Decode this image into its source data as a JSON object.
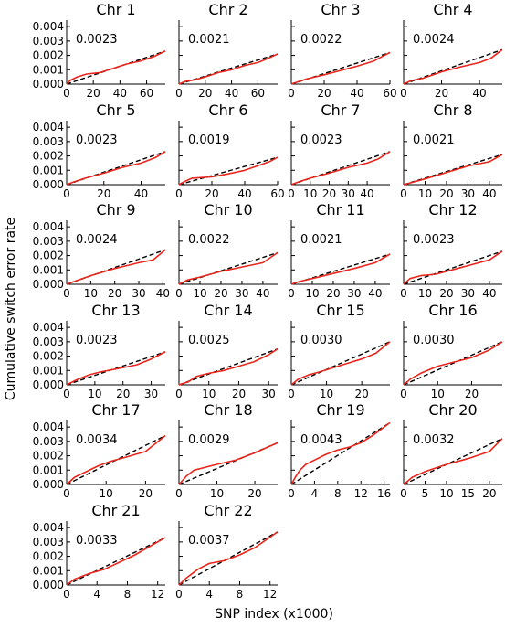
{
  "figure": {
    "xlabel": "SNP index (x1000)",
    "ylabel": "Cumulative switch error rate",
    "colors": {
      "observed": "#e8261c",
      "expected": "#000000"
    }
  },
  "chart_data": {
    "type": "line",
    "xlabel": "SNP index (x1000)",
    "ylabel": "Cumulative switch error rate",
    "ylim": [
      0,
      0.0042
    ],
    "yticks": [
      "0.000",
      "0.001",
      "0.002",
      "0.003",
      "0.004"
    ],
    "grid": false,
    "series_styles": {
      "observed": "solid red",
      "expected": "dashed black"
    },
    "panels": [
      {
        "title": "Chr 1",
        "value": "0.0023",
        "rate": 0.0023,
        "xmax": 74,
        "xlim": [
          0,
          74
        ],
        "xticks": [
          0,
          20,
          40,
          60
        ],
        "observed": [
          [
            0,
            0
          ],
          [
            3,
            0.00028
          ],
          [
            8,
            0.0005
          ],
          [
            15,
            0.0007
          ],
          [
            25,
            0.0008
          ],
          [
            35,
            0.0011
          ],
          [
            45,
            0.0014
          ],
          [
            55,
            0.0016
          ],
          [
            65,
            0.0019
          ],
          [
            74,
            0.0023
          ]
        ]
      },
      {
        "title": "Chr 2",
        "value": "0.0021",
        "rate": 0.0021,
        "xmax": 75,
        "xlim": [
          0,
          75
        ],
        "xticks": [
          0,
          20,
          40,
          60
        ],
        "observed": [
          [
            0,
            0
          ],
          [
            5,
            0.0002
          ],
          [
            12,
            0.0003
          ],
          [
            20,
            0.0005
          ],
          [
            30,
            0.0008
          ],
          [
            40,
            0.001
          ],
          [
            50,
            0.0013
          ],
          [
            60,
            0.0015
          ],
          [
            68,
            0.0018
          ],
          [
            75,
            0.0021
          ]
        ]
      },
      {
        "title": "Chr 3",
        "value": "0.0022",
        "rate": 0.0022,
        "xmax": 60,
        "xlim": [
          0,
          60
        ],
        "xticks": [
          0,
          20,
          40,
          60
        ],
        "observed": [
          [
            0,
            0
          ],
          [
            5,
            0.0002
          ],
          [
            10,
            0.00038
          ],
          [
            20,
            0.00065
          ],
          [
            30,
            0.00095
          ],
          [
            40,
            0.00125
          ],
          [
            50,
            0.0016
          ],
          [
            55,
            0.0019
          ],
          [
            60,
            0.0022
          ]
        ]
      },
      {
        "title": "Chr 4",
        "value": "0.0024",
        "rate": 0.0024,
        "xmax": 52,
        "xlim": [
          0,
          52
        ],
        "xticks": [
          0,
          20,
          40
        ],
        "observed": [
          [
            0,
            0
          ],
          [
            4,
            0.00025
          ],
          [
            10,
            0.0004
          ],
          [
            20,
            0.00085
          ],
          [
            30,
            0.0012
          ],
          [
            40,
            0.0015
          ],
          [
            46,
            0.0018
          ],
          [
            52,
            0.0024
          ]
        ]
      },
      {
        "title": "Chr 5",
        "value": "0.0023",
        "rate": 0.0023,
        "xmax": 53,
        "xlim": [
          0,
          53
        ],
        "xticks": [
          0,
          20,
          40
        ],
        "observed": [
          [
            0,
            0
          ],
          [
            4,
            0.0002
          ],
          [
            10,
            0.00045
          ],
          [
            20,
            0.0008
          ],
          [
            30,
            0.0012
          ],
          [
            40,
            0.0015
          ],
          [
            48,
            0.0019
          ],
          [
            53,
            0.0023
          ]
        ]
      },
      {
        "title": "Chr 6",
        "value": "0.0019",
        "rate": 0.0019,
        "xmax": 60,
        "xlim": [
          0,
          60
        ],
        "xticks": [
          0,
          20,
          40,
          60
        ],
        "observed": [
          [
            0,
            0
          ],
          [
            3,
            0.0002
          ],
          [
            8,
            0.00045
          ],
          [
            15,
            0.0005
          ],
          [
            20,
            0.00055
          ],
          [
            30,
            0.00075
          ],
          [
            40,
            0.001
          ],
          [
            50,
            0.0014
          ],
          [
            55,
            0.0016
          ],
          [
            60,
            0.0019
          ]
        ]
      },
      {
        "title": "Chr 7",
        "value": "0.0023",
        "rate": 0.0023,
        "xmax": 52,
        "xlim": [
          0,
          52
        ],
        "xticks": [
          0,
          10,
          20,
          30,
          40
        ],
        "observed": [
          [
            0,
            0
          ],
          [
            4,
            0.0002
          ],
          [
            10,
            0.00045
          ],
          [
            20,
            0.0008
          ],
          [
            30,
            0.0012
          ],
          [
            40,
            0.0015
          ],
          [
            46,
            0.0018
          ],
          [
            52,
            0.0023
          ]
        ]
      },
      {
        "title": "Chr 8",
        "value": "0.0021",
        "rate": 0.0021,
        "xmax": 46,
        "xlim": [
          0,
          46
        ],
        "xticks": [
          0,
          10,
          20,
          30,
          40
        ],
        "observed": [
          [
            0,
            0
          ],
          [
            5,
            0.0002
          ],
          [
            10,
            0.0004
          ],
          [
            20,
            0.00085
          ],
          [
            30,
            0.0013
          ],
          [
            40,
            0.0016
          ],
          [
            46,
            0.0021
          ]
        ]
      },
      {
        "title": "Chr 9",
        "value": "0.0024",
        "rate": 0.0024,
        "xmax": 41,
        "xlim": [
          0,
          41
        ],
        "xticks": [
          0,
          10,
          20,
          30,
          40
        ],
        "observed": [
          [
            0,
            0
          ],
          [
            4,
            0.00025
          ],
          [
            10,
            0.0006
          ],
          [
            20,
            0.0011
          ],
          [
            30,
            0.0015
          ],
          [
            36,
            0.0017
          ],
          [
            41,
            0.0024
          ]
        ]
      },
      {
        "title": "Chr 10",
        "value": "0.0022",
        "rate": 0.0022,
        "xmax": 47,
        "xlim": [
          0,
          47
        ],
        "xticks": [
          0,
          10,
          20,
          30,
          40
        ],
        "observed": [
          [
            0,
            0
          ],
          [
            4,
            0.0003
          ],
          [
            10,
            0.0005
          ],
          [
            20,
            0.0009
          ],
          [
            30,
            0.0012
          ],
          [
            40,
            0.0015
          ],
          [
            47,
            0.0022
          ]
        ]
      },
      {
        "title": "Chr 11",
        "value": "0.0021",
        "rate": 0.0021,
        "xmax": 47,
        "xlim": [
          0,
          47
        ],
        "xticks": [
          0,
          10,
          20,
          30,
          40
        ],
        "observed": [
          [
            0,
            0
          ],
          [
            4,
            0.0002
          ],
          [
            10,
            0.0004
          ],
          [
            20,
            0.00075
          ],
          [
            30,
            0.0011
          ],
          [
            40,
            0.0015
          ],
          [
            47,
            0.0021
          ]
        ]
      },
      {
        "title": "Chr 12",
        "value": "0.0023",
        "rate": 0.0023,
        "xmax": 46,
        "xlim": [
          0,
          46
        ],
        "xticks": [
          0,
          10,
          20,
          30,
          40
        ],
        "observed": [
          [
            0,
            0
          ],
          [
            3,
            0.0004
          ],
          [
            8,
            0.0006
          ],
          [
            15,
            0.0007
          ],
          [
            20,
            0.0009
          ],
          [
            30,
            0.0013
          ],
          [
            40,
            0.0017
          ],
          [
            46,
            0.0023
          ]
        ]
      },
      {
        "title": "Chr 13",
        "value": "0.0023",
        "rate": 0.0023,
        "xmax": 35,
        "xlim": [
          0,
          35
        ],
        "xticks": [
          0,
          10,
          20,
          30
        ],
        "observed": [
          [
            0,
            0
          ],
          [
            3,
            0.0003
          ],
          [
            8,
            0.0007
          ],
          [
            12,
            0.0009
          ],
          [
            20,
            0.0012
          ],
          [
            25,
            0.0014
          ],
          [
            30,
            0.0018
          ],
          [
            35,
            0.0023
          ]
        ]
      },
      {
        "title": "Chr 14",
        "value": "0.0025",
        "rate": 0.0025,
        "xmax": 33,
        "xlim": [
          0,
          33
        ],
        "xticks": [
          0,
          10,
          20,
          30
        ],
        "observed": [
          [
            0,
            0
          ],
          [
            3,
            0.0002
          ],
          [
            6,
            0.0006
          ],
          [
            10,
            0.0008
          ],
          [
            15,
            0.001
          ],
          [
            20,
            0.0013
          ],
          [
            25,
            0.0016
          ],
          [
            30,
            0.0021
          ],
          [
            33,
            0.0025
          ]
        ]
      },
      {
        "title": "Chr 15",
        "value": "0.0030",
        "rate": 0.003,
        "xmax": 28,
        "xlim": [
          0,
          28
        ],
        "xticks": [
          0,
          10,
          20
        ],
        "observed": [
          [
            0,
            0
          ],
          [
            2,
            0.0004
          ],
          [
            5,
            0.0007
          ],
          [
            8,
            0.0009
          ],
          [
            12,
            0.0012
          ],
          [
            16,
            0.0015
          ],
          [
            20,
            0.0018
          ],
          [
            24,
            0.0022
          ],
          [
            28,
            0.003
          ]
        ]
      },
      {
        "title": "Chr 16",
        "value": "0.0030",
        "rate": 0.003,
        "xmax": 29,
        "xlim": [
          0,
          29
        ],
        "xticks": [
          0,
          10,
          20
        ],
        "observed": [
          [
            0,
            0
          ],
          [
            2,
            0.0004
          ],
          [
            5,
            0.0008
          ],
          [
            10,
            0.0013
          ],
          [
            15,
            0.0016
          ],
          [
            20,
            0.0019
          ],
          [
            25,
            0.0024
          ],
          [
            29,
            0.003
          ]
        ]
      },
      {
        "title": "Chr 17",
        "value": "0.0034",
        "rate": 0.0034,
        "xmax": 25,
        "xlim": [
          0,
          25
        ],
        "xticks": [
          0,
          10,
          20
        ],
        "observed": [
          [
            0,
            0
          ],
          [
            2,
            0.0005
          ],
          [
            5,
            0.0009
          ],
          [
            8,
            0.0013
          ],
          [
            11,
            0.0016
          ],
          [
            15,
            0.0019
          ],
          [
            20,
            0.0023
          ],
          [
            25,
            0.0034
          ]
        ]
      },
      {
        "title": "Chr 18",
        "value": "0.0029",
        "rate": 0.0029,
        "xmax": 26,
        "xlim": [
          0,
          26
        ],
        "xticks": [
          0,
          10,
          20
        ],
        "observed": [
          [
            0,
            0
          ],
          [
            2,
            0.0006
          ],
          [
            4,
            0.001
          ],
          [
            7,
            0.0012
          ],
          [
            10,
            0.0014
          ],
          [
            15,
            0.0017
          ],
          [
            20,
            0.0022
          ],
          [
            26,
            0.0029
          ]
        ]
      },
      {
        "title": "Chr 19",
        "value": "0.0043",
        "rate": 0.0043,
        "xmax": 17,
        "xlim": [
          0,
          17
        ],
        "xticks": [
          0,
          4,
          8,
          12,
          16
        ],
        "observed": [
          [
            0,
            0
          ],
          [
            0.7,
            0.0005
          ],
          [
            1.5,
            0.001
          ],
          [
            2.5,
            0.0014
          ],
          [
            4,
            0.0017
          ],
          [
            6,
            0.0021
          ],
          [
            8,
            0.0024
          ],
          [
            10,
            0.0026
          ],
          [
            12,
            0.0029
          ],
          [
            14,
            0.0034
          ],
          [
            17,
            0.0043
          ]
        ]
      },
      {
        "title": "Chr 20",
        "value": "0.0032",
        "rate": 0.0032,
        "xmax": 23,
        "xlim": [
          0,
          23
        ],
        "xticks": [
          0,
          5,
          10,
          15,
          20
        ],
        "observed": [
          [
            0,
            0
          ],
          [
            2,
            0.0005
          ],
          [
            5,
            0.0009
          ],
          [
            10,
            0.0014
          ],
          [
            15,
            0.0018
          ],
          [
            20,
            0.0023
          ],
          [
            23,
            0.0032
          ]
        ]
      },
      {
        "title": "Chr 21",
        "value": "0.0033",
        "rate": 0.0033,
        "xmax": 13,
        "xlim": [
          0,
          13
        ],
        "xticks": [
          0,
          4,
          8,
          12
        ],
        "observed": [
          [
            0,
            0
          ],
          [
            1,
            0.0004
          ],
          [
            3,
            0.0008
          ],
          [
            5,
            0.0011
          ],
          [
            7,
            0.0016
          ],
          [
            9,
            0.0021
          ],
          [
            11,
            0.0027
          ],
          [
            13,
            0.0033
          ]
        ]
      },
      {
        "title": "Chr 22",
        "value": "0.0037",
        "rate": 0.0037,
        "xmax": 13,
        "xlim": [
          0,
          13
        ],
        "xticks": [
          0,
          4,
          8,
          12
        ],
        "observed": [
          [
            0,
            0
          ],
          [
            1,
            0.0005
          ],
          [
            2.5,
            0.0011
          ],
          [
            4,
            0.0015
          ],
          [
            6,
            0.0017
          ],
          [
            8,
            0.0021
          ],
          [
            10,
            0.0026
          ],
          [
            13,
            0.0037
          ]
        ]
      }
    ]
  }
}
